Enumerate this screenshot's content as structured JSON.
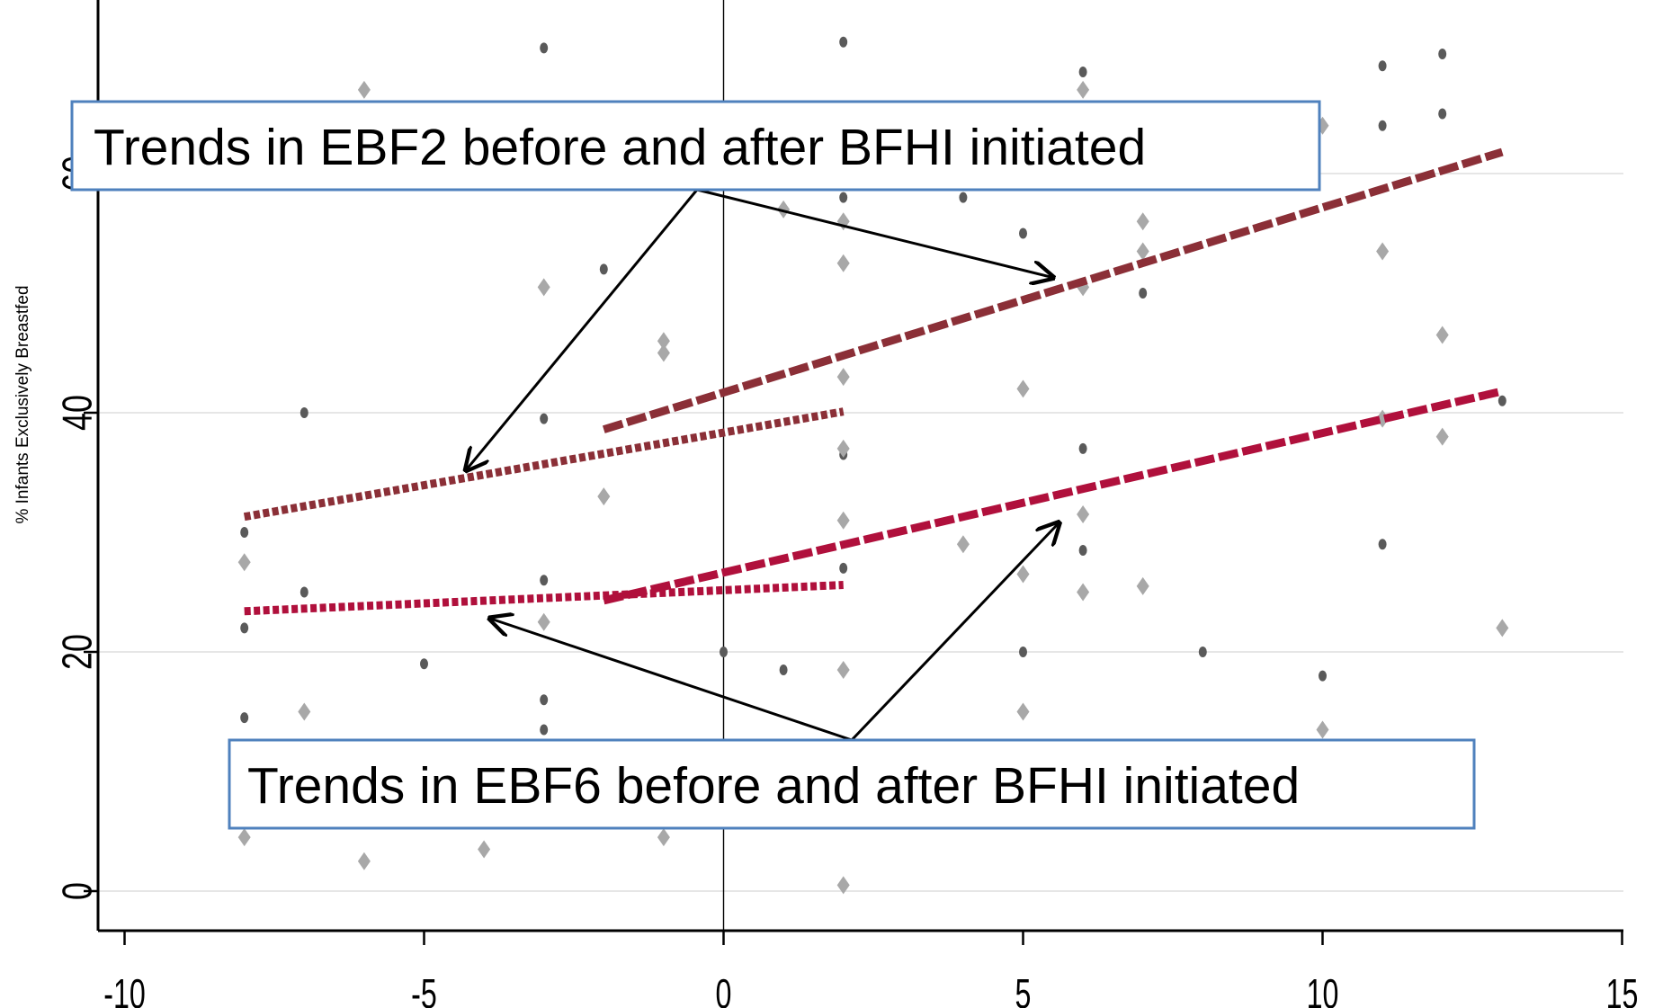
{
  "chart_data": {
    "type": "scatter",
    "title": "",
    "xlabel": "",
    "ylabel": "% Infants Exclusively Breastfed",
    "xlim": [
      -10,
      15
    ],
    "ylim": [
      -3,
      74
    ],
    "x_ticks": [
      "-10",
      "-5",
      "0",
      "5",
      "10",
      "15"
    ],
    "y_ticks": [
      "0",
      "20",
      "40",
      "60"
    ],
    "grid": true,
    "reference_line_x": 0,
    "series": [
      {
        "name": "",
        "marker": "dot",
        "color": "#5a5a5a",
        "points": [
          [
            -8,
            30
          ],
          [
            -8,
            22
          ],
          [
            -8,
            14.5
          ],
          [
            -7,
            40
          ],
          [
            -7,
            25
          ],
          [
            -5,
            19
          ],
          [
            -3,
            70.5
          ],
          [
            -3,
            39.5
          ],
          [
            -3,
            26
          ],
          [
            -3,
            16
          ],
          [
            -3,
            13.5
          ],
          [
            -2,
            52
          ],
          [
            0,
            20
          ],
          [
            1,
            18.5
          ],
          [
            2,
            71
          ],
          [
            2,
            58
          ],
          [
            2,
            37
          ],
          [
            2,
            36.5
          ],
          [
            2,
            27
          ],
          [
            4,
            58
          ],
          [
            5,
            55
          ],
          [
            5,
            20
          ],
          [
            6,
            68.5
          ],
          [
            6,
            37
          ],
          [
            6,
            28.5
          ],
          [
            7,
            50
          ],
          [
            8,
            20
          ],
          [
            10,
            18
          ],
          [
            11,
            69
          ],
          [
            11,
            64
          ],
          [
            11,
            29
          ],
          [
            12,
            70
          ],
          [
            12,
            65
          ],
          [
            13,
            41
          ]
        ]
      },
      {
        "name": "",
        "marker": "diamond",
        "color": "#a8a8a8",
        "points": [
          [
            -8,
            27.5
          ],
          [
            -8,
            4.5
          ],
          [
            -7,
            15
          ],
          [
            -6,
            67
          ],
          [
            -6,
            2.5
          ],
          [
            -4,
            3.5
          ],
          [
            -3,
            50.5
          ],
          [
            -3,
            22.5
          ],
          [
            -2,
            33
          ],
          [
            -1,
            46
          ],
          [
            -1,
            45
          ],
          [
            -1,
            4.5
          ],
          [
            1,
            57
          ],
          [
            2,
            56
          ],
          [
            2,
            52.5
          ],
          [
            2,
            43
          ],
          [
            2,
            37
          ],
          [
            2,
            31
          ],
          [
            2,
            18.5
          ],
          [
            2,
            0.5
          ],
          [
            4,
            29
          ],
          [
            5,
            42
          ],
          [
            5,
            26.5
          ],
          [
            5,
            15
          ],
          [
            6,
            67
          ],
          [
            6,
            50.5
          ],
          [
            6,
            31.5
          ],
          [
            6,
            25
          ],
          [
            7,
            56
          ],
          [
            7,
            53.5
          ],
          [
            7,
            25.5
          ],
          [
            10,
            64
          ],
          [
            10,
            13.5
          ],
          [
            11,
            53.5
          ],
          [
            11,
            39.5
          ],
          [
            12,
            46.5
          ],
          [
            12,
            38
          ],
          [
            13,
            22
          ]
        ]
      },
      {
        "name": "",
        "kind": "trend",
        "style": "dotted",
        "color": "#8b2f37",
        "x": [
          -8,
          2
        ],
        "y": [
          31.3,
          40.1
        ]
      },
      {
        "name": "",
        "kind": "trend",
        "style": "dashed",
        "color": "#8b2f37",
        "x": [
          -2,
          13
        ],
        "y": [
          38.6,
          61.8
        ]
      },
      {
        "name": "",
        "kind": "trend",
        "style": "dotted",
        "color": "#b0103c",
        "x": [
          -8,
          2
        ],
        "y": [
          23.4,
          25.6
        ]
      },
      {
        "name": "",
        "kind": "trend",
        "style": "dashed",
        "color": "#b0103c",
        "x": [
          -2,
          13
        ],
        "y": [
          24.3,
          41.8
        ]
      }
    ],
    "annotations": [
      {
        "id": "ebf2",
        "text": "Trends in EBF2 before and after BFHI initiated",
        "border_color": "#4f81bd",
        "arrow_targets": [
          [
            -4.3,
            35.2
          ],
          [
            5.5,
            51.3
          ]
        ]
      },
      {
        "id": "ebf6",
        "text": "Trends in EBF6 before and after BFHI initiated",
        "border_color": "#4f81bd",
        "arrow_targets": [
          [
            -3.9,
            22.8
          ],
          [
            5.6,
            30.8
          ]
        ]
      }
    ]
  }
}
